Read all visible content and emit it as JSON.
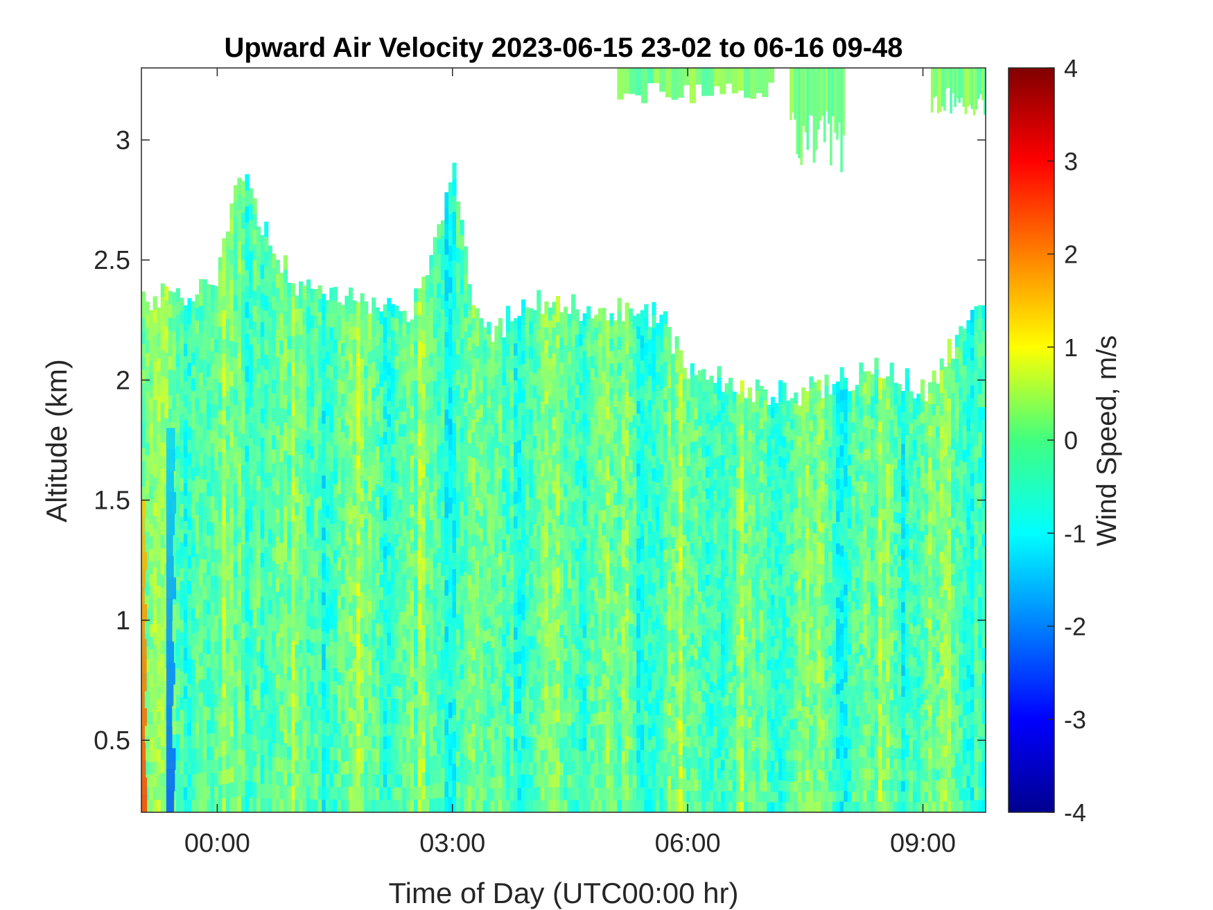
{
  "chart_data": {
    "type": "heatmap",
    "title": "Upward Air Velocity 2023-06-15 23-02 to 06-16 09-48",
    "xlabel": "Time of Day (UTC00:00 hr)",
    "ylabel": "Altitude (km)",
    "colorbar_label": "Wind Speed, m/s",
    "colormap": "jet",
    "x_units": "hours relative to 2023-06-16 00:00 UTC",
    "xlim": [
      -0.967,
      9.8
    ],
    "ylim": [
      0.2,
      3.3
    ],
    "clim": [
      -4,
      4
    ],
    "x_ticks": [
      {
        "value": 0,
        "label": "00:00"
      },
      {
        "value": 3,
        "label": "03:00"
      },
      {
        "value": 6,
        "label": "06:00"
      },
      {
        "value": 9,
        "label": "09:00"
      }
    ],
    "y_ticks": [
      {
        "value": 0.5,
        "label": "0.5"
      },
      {
        "value": 1,
        "label": "1"
      },
      {
        "value": 1.5,
        "label": "1.5"
      },
      {
        "value": 2,
        "label": "2"
      },
      {
        "value": 2.5,
        "label": "2.5"
      },
      {
        "value": 3,
        "label": "3"
      }
    ],
    "colorbar_ticks": [
      {
        "value": 4,
        "label": "4"
      },
      {
        "value": 3,
        "label": "3"
      },
      {
        "value": 2,
        "label": "2"
      },
      {
        "value": 1,
        "label": "1"
      },
      {
        "value": 0,
        "label": "0"
      },
      {
        "value": -1,
        "label": "-1"
      },
      {
        "value": -2,
        "label": "-2"
      },
      {
        "value": -3,
        "label": "-3"
      },
      {
        "value": -4,
        "label": "-4"
      }
    ],
    "data_top_envelope_km": {
      "x": [
        -0.967,
        -0.5,
        0.0,
        0.3,
        0.5,
        0.8,
        1.0,
        1.5,
        2.0,
        2.5,
        2.8,
        3.0,
        3.3,
        3.6,
        3.9,
        4.2,
        4.6,
        5.0,
        5.4,
        5.7,
        5.9,
        6.2,
        6.5,
        7.0,
        7.5,
        8.0,
        8.5,
        9.0,
        9.5,
        9.8
      ],
      "y": [
        2.35,
        2.35,
        2.4,
        2.9,
        2.7,
        2.5,
        2.4,
        2.35,
        2.3,
        2.3,
        2.6,
        2.9,
        2.25,
        2.2,
        2.35,
        2.3,
        2.3,
        2.3,
        2.3,
        2.25,
        2.1,
        2.0,
        2.0,
        1.95,
        1.95,
        2.0,
        2.05,
        1.95,
        2.2,
        2.3
      ]
    },
    "upper_patches_km": [
      {
        "x": [
          5.1,
          7.1
        ],
        "y": [
          3.15,
          3.3
        ]
      },
      {
        "x": [
          7.3,
          8.0
        ],
        "y": [
          2.85,
          3.3
        ]
      },
      {
        "x": [
          9.1,
          9.8
        ],
        "y": [
          3.1,
          3.3
        ]
      }
    ],
    "typical_value_range_m_s": [
      -1.2,
      0.8
    ],
    "notable_features": [
      {
        "x_range": [
          -0.967,
          -0.85
        ],
        "y_range": [
          0.2,
          1.5
        ],
        "value": 2.5
      },
      {
        "x_range": [
          -0.65,
          -0.45
        ],
        "y_range": [
          0.2,
          1.8
        ],
        "value": -2.3
      }
    ]
  }
}
